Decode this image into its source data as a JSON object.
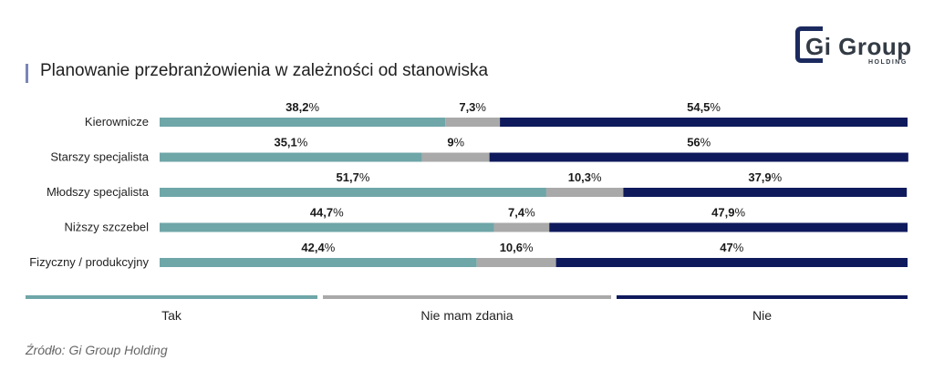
{
  "title": "Planowanie przebranżowienia w zależności od stanowiska",
  "logo": {
    "main": "Gi Group",
    "sub": "HOLDING"
  },
  "source": "Źródło: Gi Group Holding",
  "legend": [
    {
      "label": "Tak",
      "color": "#6fa6a8"
    },
    {
      "label": "Nie mam zdania",
      "color": "#a9a9a9"
    },
    {
      "label": "Nie",
      "color": "#0f1a5c"
    }
  ],
  "chart_data": {
    "type": "bar",
    "orientation": "horizontal",
    "stacked": true,
    "categories": [
      "Kierownicze",
      "Starszy specjalista",
      "Młodszy specjalista",
      "Niższy szczebel",
      "Fizyczny / produkcyjny"
    ],
    "series": [
      {
        "name": "Tak",
        "color": "#6fa6a8",
        "values": [
          38.2,
          35.1,
          51.7,
          44.7,
          42.4
        ],
        "labels": [
          "38,2",
          "35,1",
          "51,7",
          "44,7",
          "42,4"
        ]
      },
      {
        "name": "Nie mam zdania",
        "color": "#a9a9a9",
        "values": [
          7.3,
          9,
          10.3,
          7.4,
          10.6
        ],
        "labels": [
          "7,3",
          "9",
          "10,3",
          "7,4",
          "10,6"
        ]
      },
      {
        "name": "Nie",
        "color": "#0f1a5c",
        "values": [
          54.5,
          56,
          37.9,
          47.9,
          47
        ],
        "labels": [
          "54,5",
          "56",
          "37,9",
          "47,9",
          "47"
        ]
      }
    ],
    "unit": "%",
    "xlim": [
      0,
      100
    ],
    "legend_position": "bottom",
    "grid": false
  }
}
